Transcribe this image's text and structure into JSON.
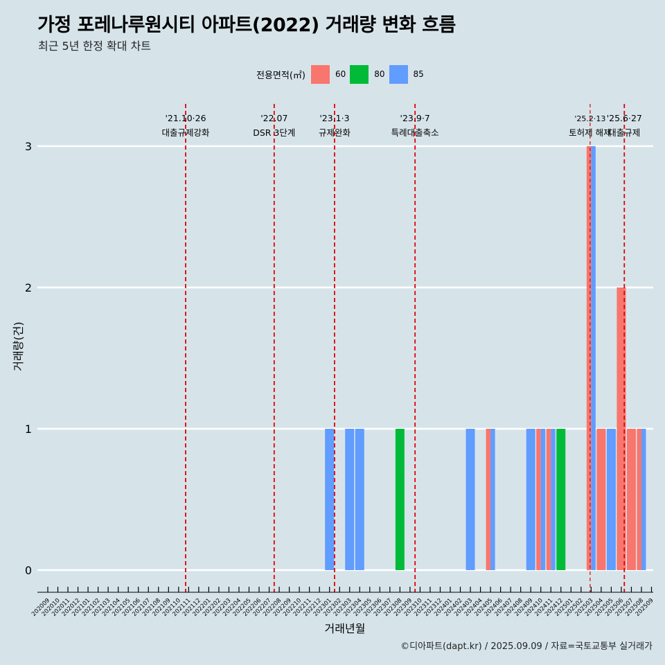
{
  "title": "가정 포레나루원시티 아파트(2022) 거래량 변화 흐름",
  "subtitle": "최근 5년 한정 확대 차트",
  "legend_title": "전용면적(㎡)",
  "footer": "©디아파트(dapt.kr) / 2025.09.09 / 자료=국토교통부 실거래가",
  "colors": {
    "background": "#d6e4ea",
    "grid": "#ffffff",
    "event_line": "#e00000",
    "60": "#f8766d",
    "80": "#00ba38",
    "85": "#619cff"
  },
  "chart_data": {
    "type": "bar",
    "stacked": true,
    "xlabel": "거래년월",
    "ylabel": "거래량(건)",
    "ylim": [
      0,
      3
    ],
    "yticks": [
      0,
      1,
      2,
      3
    ],
    "grid": "horizontal",
    "legend_position": "top",
    "categories": [
      "202009",
      "202010",
      "202011",
      "202012",
      "202101",
      "202102",
      "202103",
      "202104",
      "202105",
      "202106",
      "202107",
      "202108",
      "202109",
      "202110",
      "202111",
      "202112",
      "202201",
      "202202",
      "202203",
      "202204",
      "202205",
      "202206",
      "202207",
      "202208",
      "202209",
      "202210",
      "202211",
      "202212",
      "202301",
      "202302",
      "202303",
      "202304",
      "202305",
      "202306",
      "202307",
      "202308",
      "202309",
      "202310",
      "202311",
      "202312",
      "202401",
      "202402",
      "202403",
      "202404",
      "202405",
      "202406",
      "202407",
      "202408",
      "202409",
      "202410",
      "202411",
      "202412",
      "202501",
      "202502",
      "202503",
      "202504",
      "202505",
      "202506",
      "202507",
      "202508",
      "202509"
    ],
    "bars": [
      {
        "month": "202301",
        "values": {
          "60": 0,
          "80": 0,
          "85": 1
        }
      },
      {
        "month": "202303",
        "values": {
          "60": 0,
          "80": 0,
          "85": 1
        }
      },
      {
        "month": "202304",
        "values": {
          "60": 0,
          "80": 0,
          "85": 1
        }
      },
      {
        "month": "202308",
        "values": {
          "60": 0,
          "80": 1,
          "85": 0
        }
      },
      {
        "month": "202403",
        "values": {
          "60": 0,
          "80": 0,
          "85": 1
        }
      },
      {
        "month": "202405",
        "values": {
          "60": 1,
          "80": 0,
          "85": 1
        }
      },
      {
        "month": "202409",
        "values": {
          "60": 0,
          "80": 0,
          "85": 1
        }
      },
      {
        "month": "202410",
        "values": {
          "60": 1,
          "80": 0,
          "85": 1
        }
      },
      {
        "month": "202411",
        "values": {
          "60": 1,
          "80": 0,
          "85": 1
        }
      },
      {
        "month": "202412",
        "values": {
          "60": 0,
          "80": 1,
          "85": 0
        }
      },
      {
        "month": "202503",
        "values": {
          "60": 3,
          "80": 0,
          "85": 3
        }
      },
      {
        "month": "202504",
        "values": {
          "60": 1,
          "80": 0,
          "85": 0
        }
      },
      {
        "month": "202505",
        "values": {
          "60": 0,
          "80": 0,
          "85": 1
        }
      },
      {
        "month": "202506",
        "values": {
          "60": 2,
          "80": 0,
          "85": 0
        }
      },
      {
        "month": "202507",
        "values": {
          "60": 1,
          "80": 0,
          "85": 0
        }
      },
      {
        "month": "202508",
        "values": {
          "60": 1,
          "80": 0,
          "85": 1
        }
      }
    ],
    "series": [
      {
        "name": "60"
      },
      {
        "name": "80"
      },
      {
        "name": "85"
      }
    ],
    "events": [
      {
        "month": 13.7,
        "date_label": "'21.10·26",
        "label": "대출규제강화"
      },
      {
        "month": 22.5,
        "date_label": "'22.07",
        "label": "DSR 3단계"
      },
      {
        "month": 28.5,
        "date_label": "'23.1·3",
        "label": "규제완화"
      },
      {
        "month": 36.5,
        "date_label": "'23.9·7",
        "label": "특례대출축소"
      },
      {
        "month": 53.9,
        "date_label": "'25.2·13",
        "label": "토허제 해제",
        "dashed_thin": true
      },
      {
        "month": 57.3,
        "date_label": "'25.6·27",
        "label": "대출규제"
      }
    ]
  }
}
